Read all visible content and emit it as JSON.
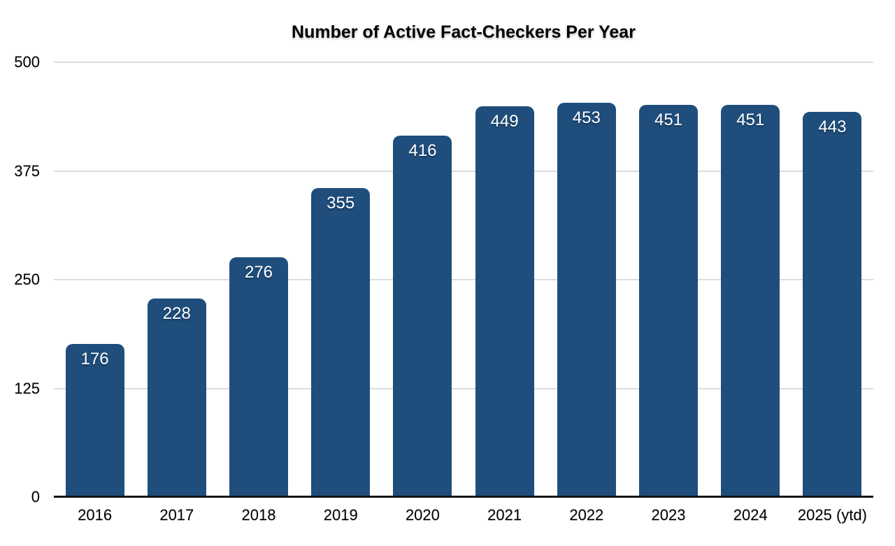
{
  "chart_data": {
    "type": "bar",
    "title": "Number of Active Fact-Checkers Per Year",
    "categories": [
      "2016",
      "2017",
      "2018",
      "2019",
      "2020",
      "2021",
      "2022",
      "2023",
      "2024",
      "2025 (ytd)"
    ],
    "values": [
      176,
      228,
      276,
      355,
      416,
      449,
      453,
      451,
      451,
      443
    ],
    "xlabel": "",
    "ylabel": "",
    "ylim": [
      0,
      500
    ],
    "yticks": [
      0,
      125,
      250,
      375,
      500
    ],
    "grid": "horizontal",
    "legend": "none",
    "colors": {
      "bar": "#1F4E7D",
      "value_label": "#FFFFFF",
      "gridline": "#DCDCDC",
      "axis_line": "#151515",
      "text": "#000000"
    }
  }
}
